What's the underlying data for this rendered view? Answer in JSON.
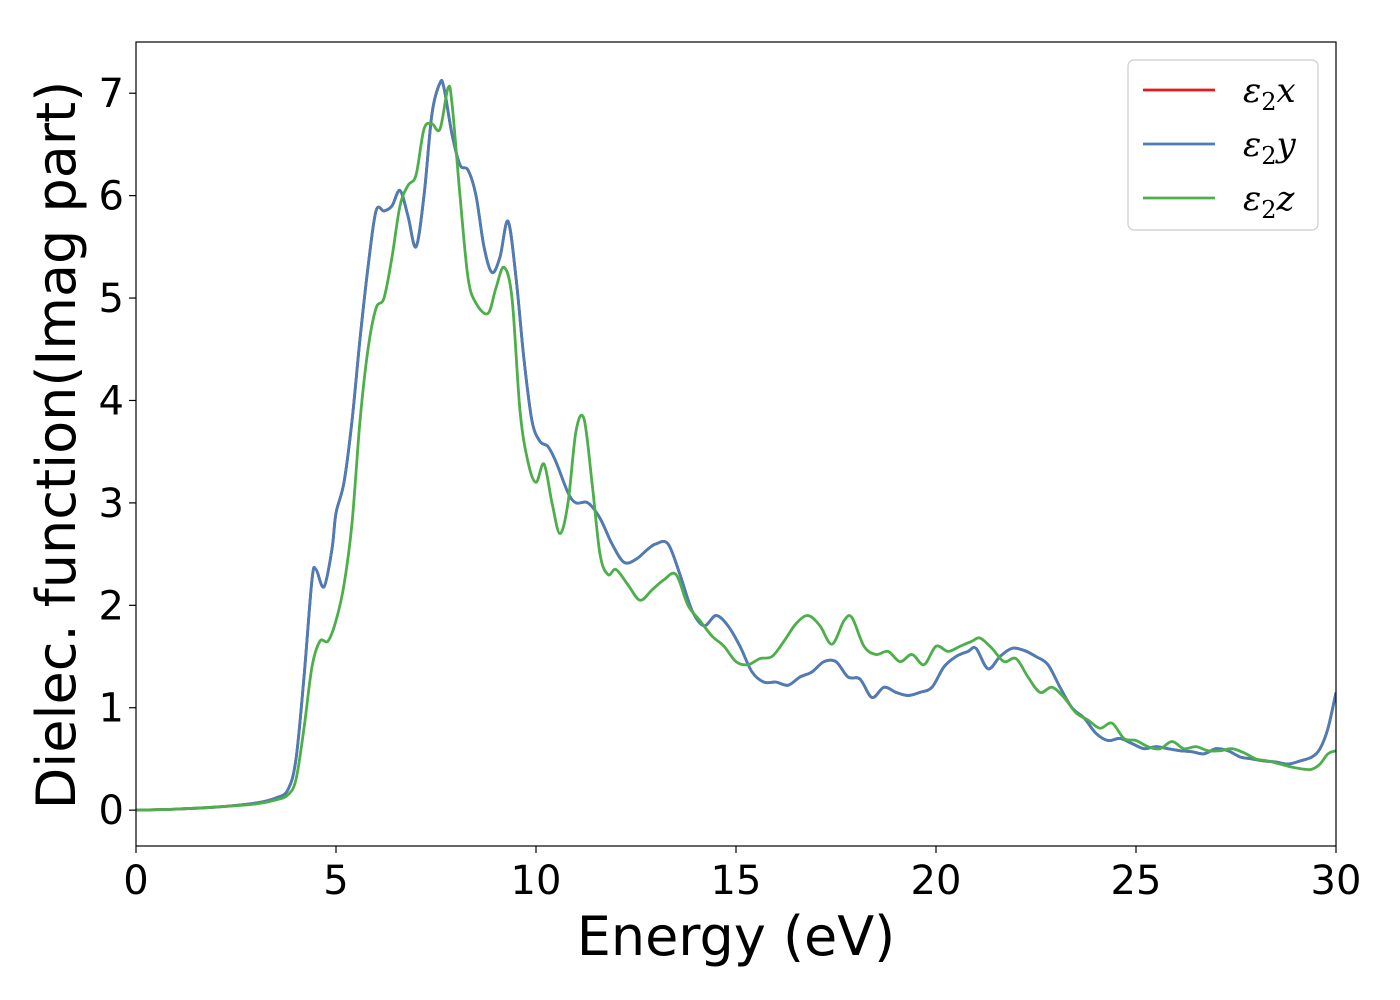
{
  "chart_data": {
    "type": "line",
    "title": "",
    "xlabel": "Energy (eV)",
    "ylabel": "Dielec. function(Imag part)",
    "xlim": [
      0,
      30
    ],
    "ylim": [
      -0.35,
      7.5
    ],
    "x_ticks": [
      0,
      5,
      10,
      15,
      20,
      25,
      30
    ],
    "y_ticks": [
      0,
      1,
      2,
      3,
      4,
      5,
      6,
      7
    ],
    "grid": false,
    "legend_position": "top-right",
    "series": [
      {
        "name": "ε₂x",
        "legend_base": "ε",
        "legend_sub": "2",
        "legend_var": "x",
        "color": "#e41a1c",
        "x": [
          0,
          1,
          2,
          3,
          3.5,
          3.8,
          4.0,
          4.2,
          4.4,
          4.5,
          4.7,
          4.9,
          5.0,
          5.2,
          5.4,
          5.6,
          5.8,
          6.0,
          6.2,
          6.4,
          6.6,
          6.8,
          7.0,
          7.2,
          7.4,
          7.6,
          7.7,
          7.9,
          8.1,
          8.3,
          8.5,
          8.7,
          8.9,
          9.1,
          9.3,
          9.5,
          9.7,
          9.9,
          10.1,
          10.3,
          10.5,
          10.8,
          11.0,
          11.3,
          11.6,
          11.9,
          12.2,
          12.5,
          12.8,
          13.0,
          13.3,
          13.6,
          13.9,
          14.2,
          14.5,
          14.8,
          15.1,
          15.4,
          15.7,
          16.0,
          16.3,
          16.6,
          16.9,
          17.2,
          17.5,
          17.8,
          18.1,
          18.4,
          18.7,
          19.0,
          19.3,
          19.6,
          19.9,
          20.2,
          20.5,
          20.8,
          21.0,
          21.3,
          21.6,
          21.9,
          22.2,
          22.5,
          22.8,
          23.1,
          23.4,
          23.7,
          24.0,
          24.3,
          24.6,
          24.9,
          25.2,
          25.5,
          25.8,
          26.1,
          26.4,
          26.7,
          27.0,
          27.3,
          27.6,
          27.9,
          28.2,
          28.5,
          28.8,
          29.1,
          29.4,
          29.6,
          29.8,
          30.0
        ],
        "y": [
          0,
          0.01,
          0.03,
          0.07,
          0.12,
          0.2,
          0.5,
          1.3,
          2.25,
          2.35,
          2.18,
          2.55,
          2.9,
          3.2,
          3.8,
          4.6,
          5.3,
          5.85,
          5.85,
          5.9,
          6.05,
          5.8,
          5.5,
          6.0,
          6.8,
          7.1,
          7.05,
          6.6,
          6.3,
          6.25,
          6.0,
          5.5,
          5.25,
          5.4,
          5.75,
          5.2,
          4.4,
          3.8,
          3.6,
          3.55,
          3.4,
          3.1,
          3.0,
          3.0,
          2.85,
          2.6,
          2.42,
          2.45,
          2.55,
          2.6,
          2.6,
          2.3,
          1.95,
          1.8,
          1.9,
          1.8,
          1.6,
          1.35,
          1.25,
          1.25,
          1.22,
          1.3,
          1.35,
          1.45,
          1.45,
          1.3,
          1.28,
          1.1,
          1.2,
          1.15,
          1.12,
          1.15,
          1.2,
          1.4,
          1.5,
          1.55,
          1.58,
          1.38,
          1.5,
          1.58,
          1.56,
          1.5,
          1.42,
          1.2,
          1.0,
          0.9,
          0.75,
          0.68,
          0.7,
          0.65,
          0.6,
          0.62,
          0.6,
          0.58,
          0.57,
          0.55,
          0.6,
          0.58,
          0.52,
          0.5,
          0.48,
          0.47,
          0.45,
          0.48,
          0.52,
          0.6,
          0.8,
          1.15
        ]
      },
      {
        "name": "ε₂y",
        "legend_base": "ε",
        "legend_sub": "2",
        "legend_var": "y",
        "color": "#4a7eb8",
        "x": [
          0,
          1,
          2,
          3,
          3.5,
          3.8,
          4.0,
          4.2,
          4.4,
          4.5,
          4.7,
          4.9,
          5.0,
          5.2,
          5.4,
          5.6,
          5.8,
          6.0,
          6.2,
          6.4,
          6.6,
          6.8,
          7.0,
          7.2,
          7.4,
          7.6,
          7.7,
          7.9,
          8.1,
          8.3,
          8.5,
          8.7,
          8.9,
          9.1,
          9.3,
          9.5,
          9.7,
          9.9,
          10.1,
          10.3,
          10.5,
          10.8,
          11.0,
          11.3,
          11.6,
          11.9,
          12.2,
          12.5,
          12.8,
          13.0,
          13.3,
          13.6,
          13.9,
          14.2,
          14.5,
          14.8,
          15.1,
          15.4,
          15.7,
          16.0,
          16.3,
          16.6,
          16.9,
          17.2,
          17.5,
          17.8,
          18.1,
          18.4,
          18.7,
          19.0,
          19.3,
          19.6,
          19.9,
          20.2,
          20.5,
          20.8,
          21.0,
          21.3,
          21.6,
          21.9,
          22.2,
          22.5,
          22.8,
          23.1,
          23.4,
          23.7,
          24.0,
          24.3,
          24.6,
          24.9,
          25.2,
          25.5,
          25.8,
          26.1,
          26.4,
          26.7,
          27.0,
          27.3,
          27.6,
          27.9,
          28.2,
          28.5,
          28.8,
          29.1,
          29.4,
          29.6,
          29.8,
          30.0
        ],
        "y": [
          0,
          0.01,
          0.03,
          0.07,
          0.12,
          0.2,
          0.5,
          1.3,
          2.25,
          2.35,
          2.18,
          2.55,
          2.9,
          3.2,
          3.8,
          4.6,
          5.3,
          5.85,
          5.85,
          5.9,
          6.05,
          5.8,
          5.5,
          6.0,
          6.8,
          7.1,
          7.05,
          6.6,
          6.3,
          6.25,
          6.0,
          5.5,
          5.25,
          5.4,
          5.75,
          5.2,
          4.4,
          3.8,
          3.6,
          3.55,
          3.4,
          3.1,
          3.0,
          3.0,
          2.85,
          2.6,
          2.42,
          2.45,
          2.55,
          2.6,
          2.6,
          2.3,
          1.95,
          1.8,
          1.9,
          1.8,
          1.6,
          1.35,
          1.25,
          1.25,
          1.22,
          1.3,
          1.35,
          1.45,
          1.45,
          1.3,
          1.28,
          1.1,
          1.2,
          1.15,
          1.12,
          1.15,
          1.2,
          1.4,
          1.5,
          1.55,
          1.58,
          1.38,
          1.5,
          1.58,
          1.56,
          1.5,
          1.42,
          1.2,
          1.0,
          0.9,
          0.75,
          0.68,
          0.7,
          0.65,
          0.6,
          0.62,
          0.6,
          0.58,
          0.57,
          0.55,
          0.6,
          0.58,
          0.52,
          0.5,
          0.48,
          0.47,
          0.45,
          0.48,
          0.52,
          0.6,
          0.8,
          1.15
        ]
      },
      {
        "name": "ε₂z",
        "legend_base": "ε",
        "legend_sub": "2",
        "legend_var": "z",
        "color": "#4daf4a",
        "x": [
          0,
          1,
          2,
          3,
          3.5,
          3.8,
          4.0,
          4.2,
          4.4,
          4.6,
          4.8,
          5.0,
          5.2,
          5.4,
          5.6,
          5.8,
          6.0,
          6.2,
          6.4,
          6.6,
          6.8,
          7.0,
          7.2,
          7.4,
          7.6,
          7.8,
          7.9,
          8.1,
          8.3,
          8.5,
          8.8,
          9.0,
          9.2,
          9.4,
          9.6,
          9.8,
          10.0,
          10.2,
          10.4,
          10.6,
          10.8,
          11.0,
          11.2,
          11.4,
          11.6,
          11.8,
          12.0,
          12.3,
          12.6,
          12.9,
          13.2,
          13.5,
          13.8,
          14.1,
          14.4,
          14.7,
          15.0,
          15.3,
          15.6,
          15.9,
          16.2,
          16.5,
          16.8,
          17.1,
          17.4,
          17.7,
          17.9,
          18.2,
          18.5,
          18.8,
          19.1,
          19.4,
          19.7,
          20.0,
          20.3,
          20.6,
          20.9,
          21.1,
          21.4,
          21.7,
          22.0,
          22.3,
          22.6,
          22.9,
          23.2,
          23.5,
          23.8,
          24.1,
          24.4,
          24.7,
          25.0,
          25.3,
          25.6,
          25.9,
          26.2,
          26.5,
          26.8,
          27.1,
          27.4,
          27.7,
          28.0,
          28.3,
          28.6,
          28.9,
          29.2,
          29.4,
          29.6,
          29.8,
          30.0
        ],
        "y": [
          0,
          0.01,
          0.03,
          0.06,
          0.1,
          0.15,
          0.3,
          0.8,
          1.4,
          1.65,
          1.65,
          1.85,
          2.2,
          2.8,
          3.8,
          4.5,
          4.9,
          5.0,
          5.4,
          5.9,
          6.1,
          6.2,
          6.65,
          6.7,
          6.65,
          7.05,
          6.9,
          6.0,
          5.2,
          4.95,
          4.85,
          5.1,
          5.3,
          5.0,
          3.9,
          3.4,
          3.2,
          3.38,
          3.0,
          2.7,
          3.0,
          3.7,
          3.82,
          3.2,
          2.5,
          2.3,
          2.35,
          2.2,
          2.05,
          2.15,
          2.25,
          2.3,
          2.0,
          1.85,
          1.7,
          1.6,
          1.45,
          1.42,
          1.48,
          1.5,
          1.65,
          1.82,
          1.9,
          1.8,
          1.62,
          1.85,
          1.88,
          1.6,
          1.52,
          1.55,
          1.45,
          1.52,
          1.42,
          1.6,
          1.55,
          1.6,
          1.65,
          1.68,
          1.58,
          1.45,
          1.48,
          1.3,
          1.15,
          1.2,
          1.1,
          0.95,
          0.88,
          0.8,
          0.85,
          0.7,
          0.68,
          0.62,
          0.6,
          0.67,
          0.6,
          0.62,
          0.58,
          0.58,
          0.6,
          0.56,
          0.5,
          0.48,
          0.45,
          0.42,
          0.4,
          0.4,
          0.45,
          0.55,
          0.58
        ]
      }
    ]
  }
}
